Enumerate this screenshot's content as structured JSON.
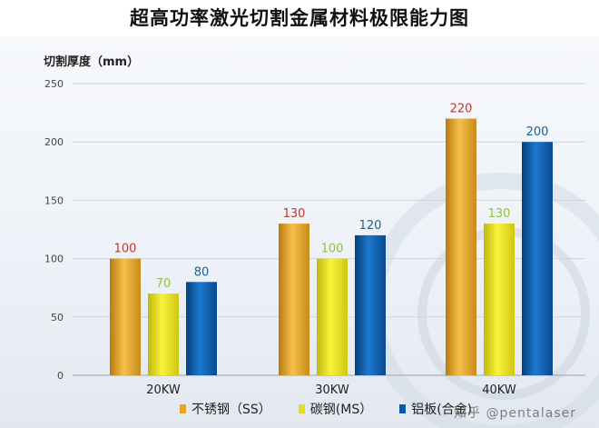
{
  "title": "超高功率激光切割金属材料极限能力图",
  "watermark": "知乎 @pentalaser",
  "chart_data": {
    "type": "bar",
    "ylabel": "切割厚度（mm）",
    "xlabel": "",
    "ylim": [
      0,
      250
    ],
    "yticks": [
      0,
      50,
      100,
      150,
      200,
      250
    ],
    "categories": [
      "20KW",
      "30KW",
      "40KW"
    ],
    "series": [
      {
        "name": "不锈钢（SS）",
        "values": [
          100,
          130,
          220
        ],
        "color": "#e8a628",
        "label_color": "#c0392b"
      },
      {
        "name": "碳钢(MS）",
        "values": [
          70,
          100,
          130
        ],
        "color": "#e6de1a",
        "label_color": "#8cc63f"
      },
      {
        "name": "铝板(合金)",
        "values": [
          80,
          120,
          200
        ],
        "color": "#0a5aa8",
        "label_color": "#1b5f8c"
      }
    ],
    "grid": true,
    "legend": "bottom"
  }
}
